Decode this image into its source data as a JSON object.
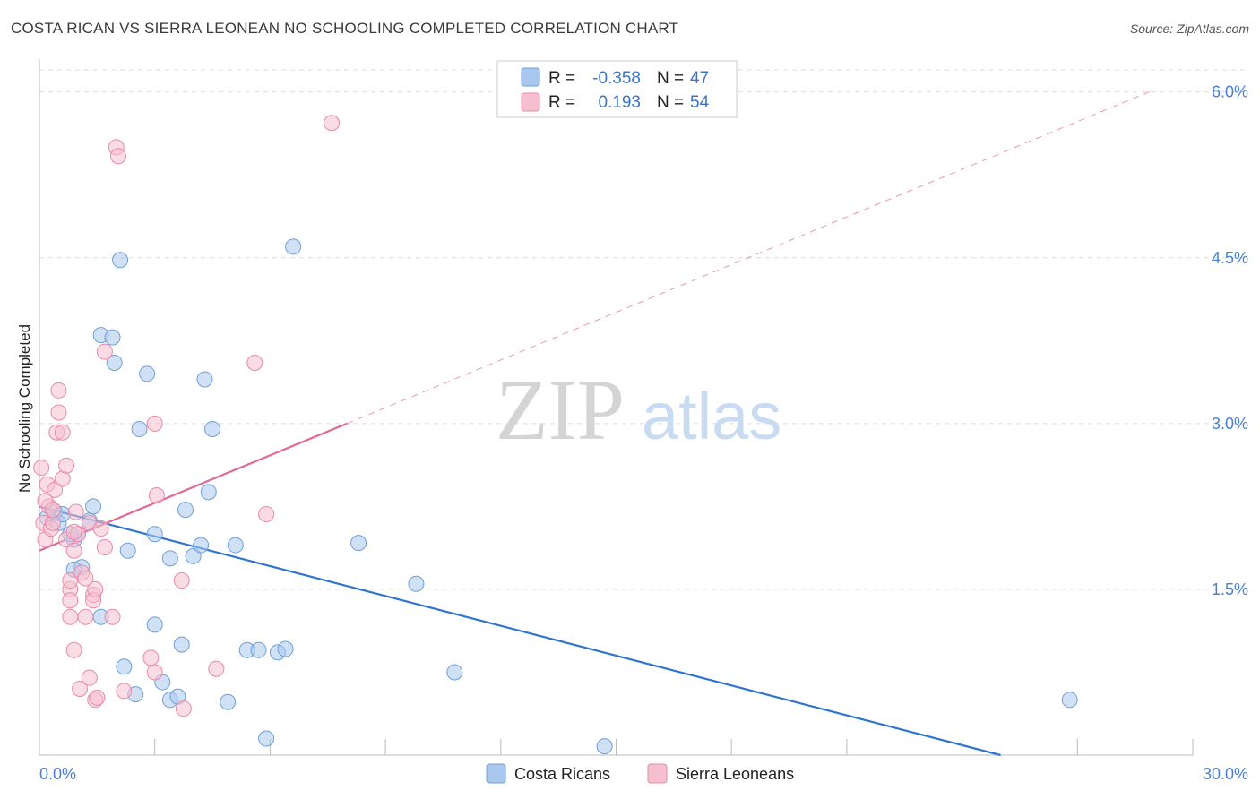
{
  "header": {
    "title": "COSTA RICAN VS SIERRA LEONEAN NO SCHOOLING COMPLETED CORRELATION CHART",
    "source": "Source: ZipAtlas.com"
  },
  "watermark": {
    "zip": "ZIP",
    "atlas": "atlas"
  },
  "legend": {
    "r_label": "R =",
    "n_label": "N =",
    "rows": [
      {
        "r": "-0.358",
        "n": "47"
      },
      {
        "r": "0.193",
        "n": "54"
      }
    ]
  },
  "bottom_legend": [
    "Costa Ricans",
    "Sierra Leoneans"
  ],
  "colors": {
    "blue_fill": "#aac8ef",
    "blue_stroke": "#6f9fd8",
    "blue_line": "#2f74d0",
    "pink_fill": "#f6bfd0",
    "pink_stroke": "#e88aa8",
    "pink_line": "#e06a94",
    "tick_text": "#4a7fd4",
    "grid": "#dcdcdc"
  },
  "chart_data": {
    "type": "scatter",
    "title": "COSTA RICAN VS SIERRA LEONEAN NO SCHOOLING COMPLETED CORRELATION CHART",
    "xlabel": "",
    "ylabel": "No Schooling Completed",
    "xlim": [
      0,
      30
    ],
    "ylim": [
      0,
      6.2
    ],
    "x_tick_labels": [
      {
        "value": 0,
        "label": "0.0%"
      },
      {
        "value": 30,
        "label": "30.0%"
      }
    ],
    "y_tick_labels": [
      {
        "value": 1.5,
        "label": "1.5%"
      },
      {
        "value": 3.0,
        "label": "3.0%"
      },
      {
        "value": 4.5,
        "label": "4.5%"
      },
      {
        "value": 6.0,
        "label": "6.0%"
      }
    ],
    "grid": true,
    "legend_position": "top-center",
    "series": [
      {
        "name": "Costa Ricans",
        "color": "#aac8ef",
        "points": [
          [
            0.2,
            2.15
          ],
          [
            0.4,
            2.2
          ],
          [
            0.5,
            2.1
          ],
          [
            0.6,
            2.18
          ],
          [
            0.9,
            1.95
          ],
          [
            0.8,
            2.0
          ],
          [
            1.0,
            2.0
          ],
          [
            1.1,
            1.7
          ],
          [
            0.9,
            1.68
          ],
          [
            1.3,
            2.12
          ],
          [
            1.4,
            2.25
          ],
          [
            1.6,
            1.25
          ],
          [
            1.6,
            3.8
          ],
          [
            1.9,
            3.78
          ],
          [
            1.95,
            3.55
          ],
          [
            2.1,
            4.48
          ],
          [
            2.2,
            0.8
          ],
          [
            2.3,
            1.85
          ],
          [
            2.5,
            0.55
          ],
          [
            2.6,
            2.95
          ],
          [
            2.8,
            3.45
          ],
          [
            3.0,
            2.0
          ],
          [
            3.0,
            1.18
          ],
          [
            3.2,
            0.66
          ],
          [
            3.4,
            1.78
          ],
          [
            3.4,
            0.5
          ],
          [
            3.6,
            0.53
          ],
          [
            3.7,
            1.0
          ],
          [
            3.8,
            2.22
          ],
          [
            4.0,
            1.8
          ],
          [
            4.2,
            1.9
          ],
          [
            4.3,
            3.4
          ],
          [
            4.4,
            2.38
          ],
          [
            4.5,
            2.95
          ],
          [
            4.9,
            0.48
          ],
          [
            5.1,
            1.9
          ],
          [
            5.4,
            0.95
          ],
          [
            5.7,
            0.95
          ],
          [
            5.9,
            0.15
          ],
          [
            6.2,
            0.93
          ],
          [
            6.4,
            0.96
          ],
          [
            6.6,
            4.6
          ],
          [
            8.3,
            1.92
          ],
          [
            9.8,
            1.55
          ],
          [
            10.8,
            0.75
          ],
          [
            14.7,
            0.08
          ],
          [
            26.8,
            0.5
          ]
        ]
      },
      {
        "name": "Sierra Leoneans",
        "color": "#f6bfd0",
        "points": [
          [
            0.05,
            2.6
          ],
          [
            0.1,
            2.1
          ],
          [
            0.15,
            1.95
          ],
          [
            0.2,
            2.45
          ],
          [
            0.25,
            2.25
          ],
          [
            0.3,
            2.05
          ],
          [
            0.35,
            2.1
          ],
          [
            0.4,
            2.4
          ],
          [
            0.45,
            2.92
          ],
          [
            0.5,
            3.3
          ],
          [
            0.5,
            3.1
          ],
          [
            0.6,
            2.92
          ],
          [
            0.6,
            2.5
          ],
          [
            0.7,
            2.62
          ],
          [
            0.7,
            1.95
          ],
          [
            0.8,
            1.25
          ],
          [
            0.8,
            1.5
          ],
          [
            0.8,
            1.58
          ],
          [
            0.8,
            1.4
          ],
          [
            0.9,
            1.85
          ],
          [
            0.9,
            0.95
          ],
          [
            0.95,
            2.2
          ],
          [
            1.0,
            2.0
          ],
          [
            1.05,
            0.6
          ],
          [
            1.1,
            1.65
          ],
          [
            1.2,
            1.25
          ],
          [
            1.2,
            1.6
          ],
          [
            1.3,
            2.1
          ],
          [
            1.3,
            0.7
          ],
          [
            1.4,
            1.45
          ],
          [
            1.4,
            1.4
          ],
          [
            1.45,
            1.5
          ],
          [
            1.45,
            0.5
          ],
          [
            1.5,
            0.52
          ],
          [
            1.6,
            2.05
          ],
          [
            1.7,
            3.65
          ],
          [
            1.7,
            1.88
          ],
          [
            1.9,
            1.25
          ],
          [
            2.0,
            5.5
          ],
          [
            2.05,
            5.42
          ],
          [
            2.2,
            0.58
          ],
          [
            2.9,
            0.88
          ],
          [
            3.0,
            0.75
          ],
          [
            3.05,
            2.35
          ],
          [
            3.0,
            3.0
          ],
          [
            3.75,
            0.42
          ],
          [
            3.7,
            1.58
          ],
          [
            4.6,
            0.78
          ],
          [
            5.6,
            3.55
          ],
          [
            5.9,
            2.18
          ],
          [
            7.6,
            5.72
          ],
          [
            0.15,
            2.3
          ],
          [
            0.35,
            2.22
          ],
          [
            0.9,
            2.02
          ]
        ]
      }
    ],
    "trendlines": [
      {
        "series": "Costa Ricans",
        "x": [
          0,
          25
        ],
        "y": [
          2.25,
          0.0
        ],
        "style": "solid"
      },
      {
        "series": "Sierra Leoneans",
        "x": [
          0,
          8
        ],
        "y": [
          1.85,
          3.0
        ],
        "style": "solid"
      },
      {
        "series": "Sierra Leoneans",
        "x": [
          8,
          29
        ],
        "y": [
          3.0,
          6.02
        ],
        "style": "dashed"
      }
    ]
  }
}
